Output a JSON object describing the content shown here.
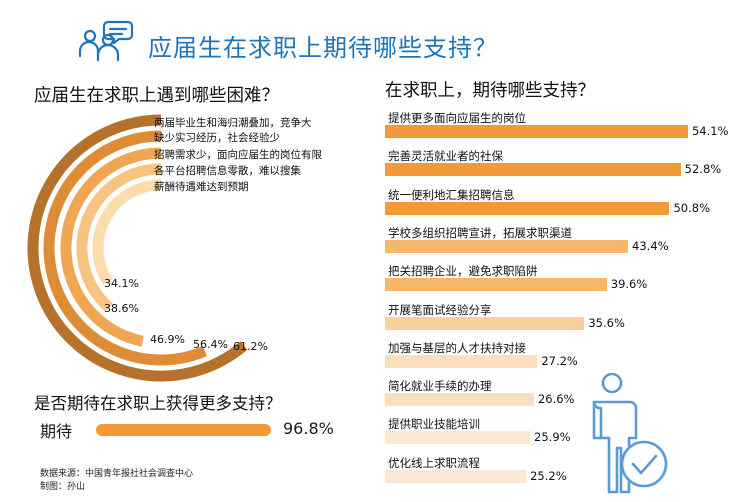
{
  "header": {
    "title": "应届生在求职上期待哪些支持？"
  },
  "chart_data": [
    {
      "type": "radial-bar",
      "title": "应届生在求职上遇到哪些困难？",
      "max": 100,
      "items": [
        {
          "label": "两届毕业生和海归潮叠加，竞争大",
          "value": 61.2,
          "value_text": "61.2%",
          "color": "#b5722c"
        },
        {
          "label": "缺少实习经历，社会经验少",
          "value": 56.4,
          "value_text": "56.4%",
          "color": "#de8c35"
        },
        {
          "label": "招聘需求少，面向应届生的岗位有限",
          "value": 46.9,
          "value_text": "46.9%",
          "color": "#f1a653"
        },
        {
          "label": "各平台招聘信息零散，难以搜集",
          "value": 38.6,
          "value_text": "38.6%",
          "color": "#f6c480"
        },
        {
          "label": "薪酬待遇难达到预期",
          "value": 34.1,
          "value_text": "34.1%",
          "color": "#fbdcac"
        }
      ]
    },
    {
      "type": "bar",
      "title": "在求职上，期待哪些支持？",
      "categories": [
        "提供更多面向应届生的岗位",
        "完善灵活就业者的社保",
        "统一便利地汇集招聘信息",
        "学校多组织招聘宣讲，拓展求职渠道",
        "把关招聘企业，避免求职陷阱",
        "开展笔面试经验分享",
        "加强与基层的人才扶持对接",
        "简化就业手续的办理",
        "提供职业技能培训",
        "优化线上求职流程"
      ],
      "values": [
        54.1,
        52.8,
        50.8,
        43.4,
        39.6,
        35.6,
        27.2,
        26.6,
        25.9,
        25.2
      ],
      "value_texts": [
        "54.1%",
        "52.8%",
        "50.8%",
        "43.4%",
        "39.6%",
        "35.6%",
        "27.2%",
        "26.6%",
        "25.9%",
        "25.2%"
      ],
      "colors": [
        "#f29a38",
        "#f29a38",
        "#f29a38",
        "#f6b76a",
        "#f6b76a",
        "#f9cf9c",
        "#fbe0c0",
        "#fbe0c0",
        "#fce8d0",
        "#fce8d0"
      ]
    },
    {
      "type": "bar",
      "title": "是否期待在求职上获得更多支持？",
      "categories": [
        "期待"
      ],
      "values": [
        96.8
      ],
      "value_texts": [
        "96.8%"
      ],
      "color": "#f29a38"
    }
  ],
  "footer": {
    "source": "数据来源：中国青年报社社会调查中心",
    "credit": "制图：孙山"
  },
  "icons": {
    "header": "people-chat-icon",
    "person": "person-check-icon"
  },
  "colors": {
    "title_blue": "#1f75b8",
    "icon_blue": "#5b9bd5",
    "accent_orange": "#f29a38"
  }
}
